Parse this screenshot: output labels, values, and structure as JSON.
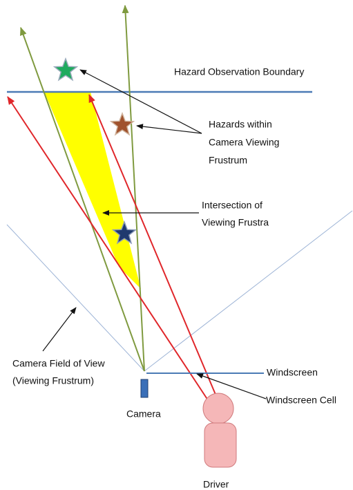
{
  "labels": {
    "hazard_boundary": "Hazard Observation Boundary",
    "hazards": [
      "Hazards within",
      "Camera Viewing",
      "Frustrum"
    ],
    "intersection": [
      "Intersection of",
      "Viewing Frustra"
    ],
    "field_of_view": [
      "Camera Field of View",
      "(Viewing Frustrum)"
    ],
    "windscreen": "Windscreen",
    "windscreen_cell": "Windscreen Cell",
    "camera": "Camera",
    "driver": "Driver"
  }
}
